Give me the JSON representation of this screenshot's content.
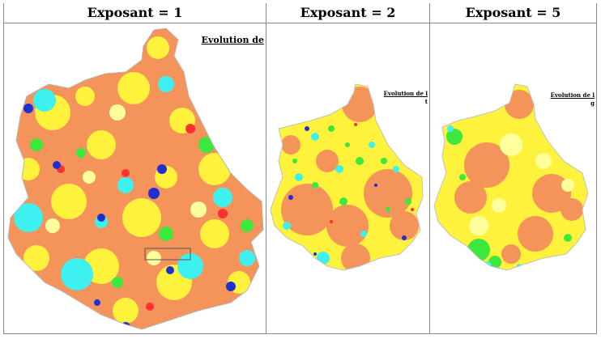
{
  "panels": [
    {
      "header": "Exposant = 1",
      "legend_title": "Evolution de",
      "legend_sub": ""
    },
    {
      "header": "Exposant = 2",
      "legend_title": "Evolution de l",
      "legend_sub": "t"
    },
    {
      "header": "Exposant = 5",
      "legend_title": "Evolution de l",
      "legend_sub": "g"
    }
  ],
  "palette": {
    "orange": "#f4935a",
    "yellow": "#fff23c",
    "light_yellow": "#ffff9c",
    "cyan": "#3ef0f0",
    "green": "#3de83d",
    "blue": "#2030d0",
    "red": "#ff3030",
    "white": "#ffffff"
  }
}
